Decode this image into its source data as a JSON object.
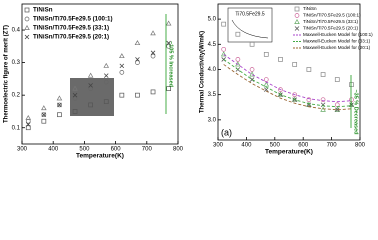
{
  "chart_data": [
    {
      "type": "scatter",
      "xlabel": "Temperature(K)",
      "ylabel": "Thermoelectric figure of merit (ZT)",
      "x": [
        320,
        370,
        420,
        470,
        520,
        570,
        620,
        670,
        720,
        770
      ],
      "xlim": [
        300,
        800
      ],
      "xticks": [
        300,
        400,
        500,
        600,
        700,
        800
      ],
      "ylim": [
        0.05,
        0.48
      ],
      "yticks": [
        0.1,
        0.2,
        0.3,
        0.4
      ],
      "legend": "upper left",
      "annotation": "~105 % Increased",
      "series": [
        {
          "name": "TiNiSn",
          "color": "#555555",
          "marker": "square",
          "values": [
            0.1,
            0.12,
            0.14,
            0.15,
            0.17,
            0.18,
            0.2,
            0.2,
            0.21,
            0.22
          ]
        },
        {
          "name": "TiNiSn/Ti70.5Fe29.5 (100:1)",
          "color": "#666666",
          "marker": "circle",
          "values": [
            0.12,
            0.14,
            0.17,
            0.19,
            0.22,
            0.24,
            0.27,
            0.3,
            0.32,
            0.35
          ]
        },
        {
          "name": "TiNiSn/Ti70.5Fe29.5 (33:1)",
          "color": "#777777",
          "marker": "triangle",
          "values": [
            0.13,
            0.16,
            0.19,
            0.22,
            0.26,
            0.29,
            0.32,
            0.36,
            0.39,
            0.42
          ]
        },
        {
          "name": "TiNiSn/Ti70.5Fe29.5 (20:1)",
          "color": "#444444",
          "marker": "cross",
          "values": [
            0.11,
            0.14,
            0.17,
            0.2,
            0.23,
            0.26,
            0.29,
            0.31,
            0.33,
            0.36
          ]
        }
      ]
    },
    {
      "type": "scatter",
      "xlabel": "Temperature(K)",
      "ylabel": "Thermal Conductivity(W/mK)",
      "panel_label": "(a)",
      "inset_label": "Ti70.5Fe29.5",
      "x": [
        320,
        370,
        420,
        470,
        520,
        570,
        620,
        670,
        720,
        770
      ],
      "xlim": [
        300,
        800
      ],
      "xticks": [
        300,
        400,
        500,
        600,
        700,
        800
      ],
      "ylim": [
        2.6,
        5.3
      ],
      "yticks": [
        {
          "value": 3,
          "label": "3.0"
        },
        3.5,
        {
          "value": 4,
          "label": "4.0"
        },
        4.5,
        {
          "value": 5,
          "label": "5.0"
        }
      ],
      "legend": "upper right",
      "annotation": "~35 % Decreased",
      "series": [
        {
          "name": "TiNiSn",
          "color": "#888888",
          "marker": "square",
          "values": [
            4.9,
            4.7,
            4.5,
            4.3,
            4.2,
            4.1,
            4.0,
            3.9,
            3.8,
            3.7
          ]
        },
        {
          "name": "TiNiSn/Ti70.5Fe29.5 (100:1)",
          "color": "#cc6699",
          "marker": "circle",
          "values": [
            4.4,
            4.2,
            4.0,
            3.8,
            3.6,
            3.5,
            3.4,
            3.4,
            3.3,
            3.4
          ]
        },
        {
          "name": "TiNiSn/Ti70.5Fe29.5 (33:1)",
          "color": "#66aa66",
          "marker": "triangle",
          "values": [
            4.3,
            4.1,
            3.9,
            3.7,
            3.5,
            3.4,
            3.3,
            3.2,
            3.2,
            3.3
          ]
        },
        {
          "name": "TiNiSn/Ti70.5Fe29.5 (20:1)",
          "color": "#555555",
          "marker": "cross",
          "values": [
            4.2,
            4.0,
            3.8,
            3.6,
            3.5,
            3.4,
            3.3,
            3.3,
            3.2,
            3.3
          ]
        },
        {
          "name": "Maxwell-Eucken Model for (100:1)",
          "color": "#aa44cc",
          "dashed": true,
          "values": [
            4.3,
            4.1,
            3.9,
            3.75,
            3.6,
            3.5,
            3.42,
            3.38,
            3.36,
            3.38
          ]
        },
        {
          "name": "Maxwell-Eucken Model for (33:1)",
          "color": "#44aa44",
          "dashed": true,
          "values": [
            4.2,
            4.0,
            3.8,
            3.65,
            3.5,
            3.4,
            3.32,
            3.28,
            3.26,
            3.28
          ]
        },
        {
          "name": "Maxwell-Eucken Model for (20:1)",
          "color": "#996633",
          "dashed": true,
          "values": [
            4.1,
            3.9,
            3.72,
            3.57,
            3.43,
            3.33,
            3.26,
            3.22,
            3.2,
            3.22
          ]
        }
      ]
    }
  ]
}
